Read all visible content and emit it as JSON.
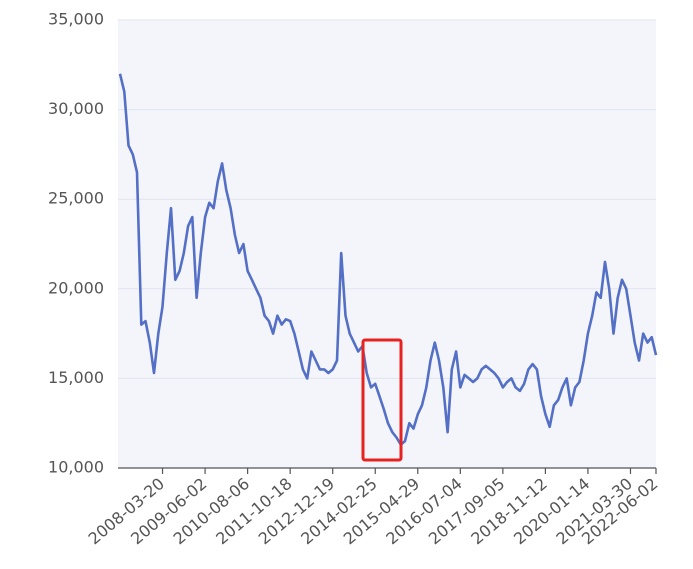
{
  "chart_data": {
    "type": "line",
    "categories": [
      null,
      null,
      null,
      null,
      null,
      null,
      null,
      null,
      null,
      null,
      "2008-03-20",
      null,
      null,
      null,
      null,
      null,
      null,
      null,
      null,
      null,
      "2009-06-02",
      null,
      null,
      null,
      null,
      null,
      null,
      null,
      null,
      null,
      "2010-08-06",
      null,
      null,
      null,
      null,
      null,
      null,
      null,
      null,
      null,
      "2011-10-18",
      null,
      null,
      null,
      null,
      null,
      null,
      null,
      null,
      null,
      "2012-12-19",
      null,
      null,
      null,
      null,
      null,
      null,
      null,
      null,
      null,
      "2014-02-25",
      null,
      null,
      null,
      null,
      null,
      null,
      null,
      null,
      null,
      "2015-04-29",
      null,
      null,
      null,
      null,
      null,
      null,
      null,
      null,
      null,
      "2016-07-04",
      null,
      null,
      null,
      null,
      null,
      null,
      null,
      null,
      null,
      "2017-09-05",
      null,
      null,
      null,
      null,
      null,
      null,
      null,
      null,
      null,
      "2018-11-12",
      null,
      null,
      null,
      null,
      null,
      null,
      null,
      null,
      null,
      "2020-01-14",
      null,
      null,
      null,
      null,
      null,
      null,
      null,
      null,
      null,
      "2021-03-30",
      null,
      null,
      null,
      null,
      null,
      "2022-06-02"
    ],
    "series": [
      {
        "color": "#5470c6",
        "values": [
          32000,
          31000,
          28000,
          27500,
          26500,
          18000,
          18200,
          17000,
          15300,
          17500,
          19000,
          22000,
          24500,
          20500,
          21000,
          22000,
          23500,
          24000,
          19500,
          22000,
          24000,
          24800,
          24500,
          26000,
          27000,
          25500,
          24500,
          23000,
          22000,
          22500,
          21000,
          20500,
          20000,
          19500,
          18500,
          18200,
          17500,
          18500,
          18000,
          18300,
          18200,
          17500,
          16500,
          15500,
          15000,
          16500,
          16000,
          15500,
          15500,
          15300,
          15500,
          16000,
          22000,
          18500,
          17500,
          17000,
          16500,
          16800,
          15300,
          14500,
          14700,
          14000,
          13300,
          12500,
          12000,
          11700,
          11300,
          11500,
          12500,
          12200,
          13000,
          13500,
          14500,
          16000,
          17000,
          16000,
          14500,
          12000,
          15500,
          16500,
          14500,
          15200,
          15000,
          14800,
          15000,
          15500,
          15700,
          15500,
          15300,
          15000,
          14500,
          14800,
          15000,
          14500,
          14300,
          14700,
          15500,
          15800,
          15500,
          14000,
          13000,
          12300,
          13500,
          13800,
          14500,
          15000,
          13500,
          14500,
          14800,
          16000,
          17500,
          18500,
          19800,
          19500,
          21500,
          20000,
          17500,
          19500,
          20500,
          20000,
          18500,
          17000,
          16000,
          17500,
          17000,
          17300,
          16300
        ]
      }
    ],
    "ylim": [
      10000,
      35000
    ],
    "yticks": [
      {
        "value": 10000,
        "label": "10,000"
      },
      {
        "value": 15000,
        "label": "15,000"
      },
      {
        "value": 20000,
        "label": "20,000"
      },
      {
        "value": 25000,
        "label": "25,000"
      },
      {
        "value": 30000,
        "label": "30,000"
      },
      {
        "value": 35000,
        "label": "35,000"
      }
    ],
    "grid": true
  }
}
